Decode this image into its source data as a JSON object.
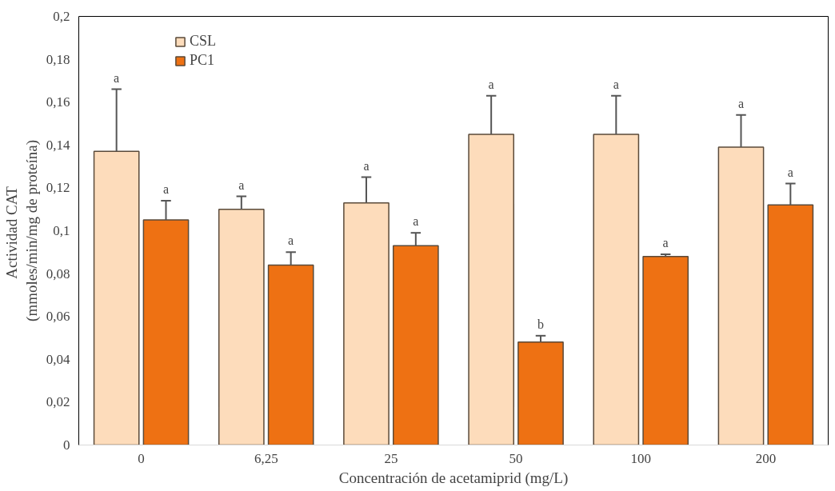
{
  "chart_data": {
    "type": "bar",
    "xlabel": "Concentración de acetamiprid (mg/L)",
    "ylabel": "Actividad  CAT\n(mmoles/min/mg de proteína)",
    "categories": [
      "0",
      "6,25",
      "25",
      "50",
      "100",
      "200"
    ],
    "series": [
      {
        "name": "CSL",
        "color": "#fddcbb",
        "values": [
          0.137,
          0.11,
          0.113,
          0.145,
          0.145,
          0.139
        ],
        "errors": [
          [
            0.137,
            0.166
          ],
          [
            0.11,
            0.116
          ],
          [
            0.113,
            0.125
          ],
          [
            0.145,
            0.163
          ],
          [
            0.145,
            0.163
          ],
          [
            0.139,
            0.154
          ]
        ]
      },
      {
        "name": "PC1",
        "color": "#ee7113",
        "values": [
          0.105,
          0.084,
          0.093,
          0.048,
          0.088,
          0.112
        ],
        "errors": [
          [
            0.105,
            0.114
          ],
          [
            0.084,
            0.09
          ],
          [
            0.093,
            0.099
          ],
          [
            0.048,
            0.051
          ],
          [
            0.088,
            0.089
          ],
          [
            0.112,
            0.122
          ]
        ]
      }
    ],
    "annotations": [
      "a",
      "a",
      "a",
      "a",
      "a",
      "a",
      "a",
      "b",
      "a",
      "a",
      "a",
      "a"
    ],
    "ylim": [
      0,
      0.2
    ],
    "yticks": [
      0,
      {
        "value": 0.02,
        "label": "0,02"
      },
      {
        "value": 0.04,
        "label": "0,04"
      },
      {
        "value": 0.06,
        "label": "0,06"
      },
      {
        "value": 0.08,
        "label": "0,08"
      },
      {
        "value": 0.1,
        "label": "0,1"
      },
      {
        "value": 0.12,
        "label": "0,12"
      },
      {
        "value": 0.14,
        "label": "0,14"
      },
      {
        "value": 0.16,
        "label": "0,16"
      },
      {
        "value": 0.18,
        "label": "0,18"
      },
      {
        "value": 0.2,
        "label": "0,2"
      }
    ],
    "legend": "top left",
    "grid": false
  }
}
